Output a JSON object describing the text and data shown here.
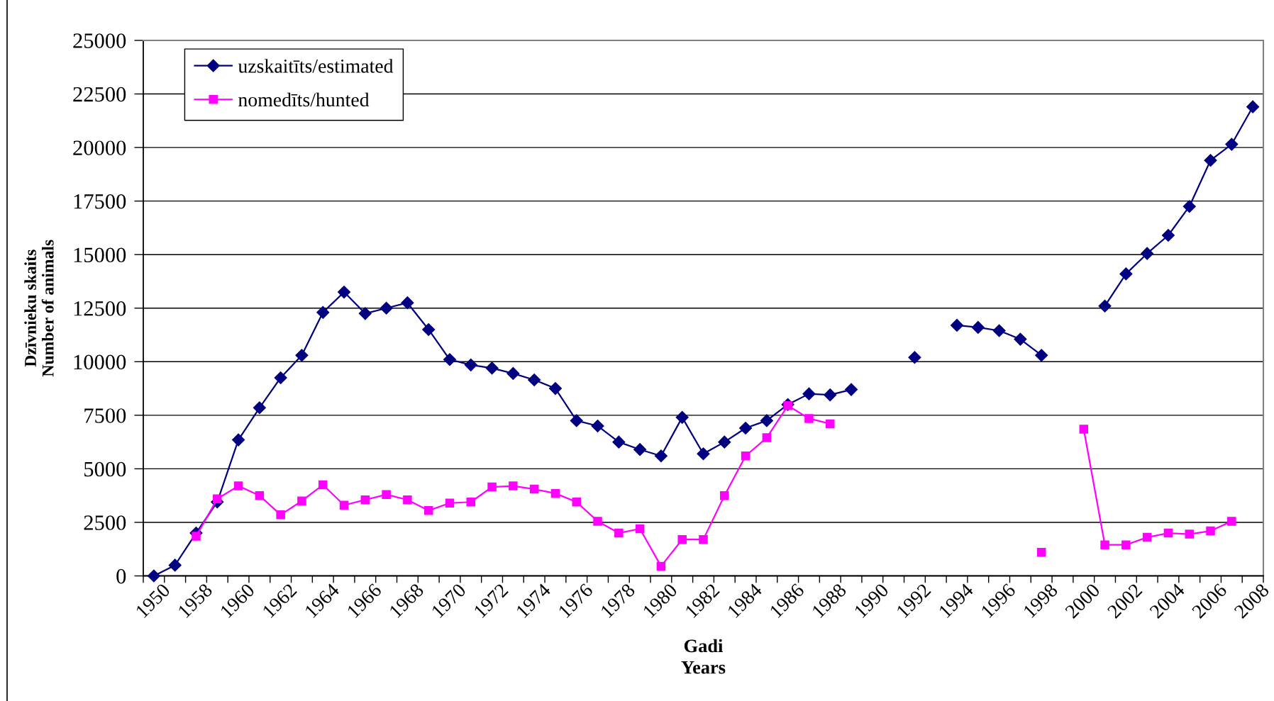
{
  "chart_data": {
    "type": "line",
    "xlabel": "Gadi\nYears",
    "ylabel": "Dzīvnieku skaits\nNumber of animals",
    "categories": [
      "1950",
      null,
      "1958",
      null,
      "1960",
      null,
      "1962",
      null,
      "1964",
      null,
      "1966",
      null,
      "1968",
      null,
      "1970",
      null,
      "1972",
      null,
      "1974",
      null,
      "1976",
      null,
      "1978",
      null,
      "1980",
      null,
      "1982",
      null,
      "1984",
      null,
      "1986",
      null,
      "1988",
      null,
      "1990",
      null,
      "1992",
      null,
      "1994",
      null,
      "1996",
      null,
      "1998",
      null,
      "2000",
      null,
      "2002",
      null,
      "2004",
      null,
      "2006",
      null,
      "2008"
    ],
    "series": [
      {
        "name": "uzskaitīts/estimated",
        "color": "#000080",
        "marker": "diamond",
        "values": [
          0,
          500,
          2000,
          3450,
          6350,
          7850,
          9250,
          10300,
          12300,
          13250,
          12250,
          12500,
          12750,
          11500,
          10100,
          9850,
          9700,
          9450,
          9150,
          8750,
          7250,
          7000,
          6250,
          5900,
          5600,
          7400,
          5700,
          6250,
          6900,
          7250,
          8000,
          8500,
          8450,
          8700,
          null,
          null,
          10200,
          null,
          11700,
          11600,
          11450,
          11050,
          10300,
          null,
          null,
          12600,
          14100,
          15050,
          15900,
          17250,
          19400,
          20150,
          21900
        ]
      },
      {
        "name": "nomedīts/hunted",
        "color": "#ff00ff",
        "marker": "square",
        "values": [
          null,
          null,
          1850,
          3600,
          4200,
          3750,
          2850,
          3500,
          4250,
          3300,
          3550,
          3800,
          3550,
          3050,
          3400,
          3450,
          4150,
          4200,
          4050,
          3850,
          3450,
          2550,
          2000,
          2200,
          450,
          1700,
          1700,
          3750,
          5600,
          6450,
          7950,
          7350,
          7100,
          null,
          null,
          null,
          null,
          null,
          null,
          null,
          null,
          null,
          1100,
          null,
          6850,
          1450,
          1450,
          1800,
          2000,
          1950,
          2100,
          2550,
          null
        ]
      }
    ],
    "ylim": [
      0,
      25000
    ],
    "yticks": [
      0,
      2500,
      5000,
      7500,
      10000,
      12500,
      15000,
      17500,
      20000,
      22500,
      25000
    ],
    "grid": "y",
    "legend": "top left",
    "line_style": "solid"
  }
}
